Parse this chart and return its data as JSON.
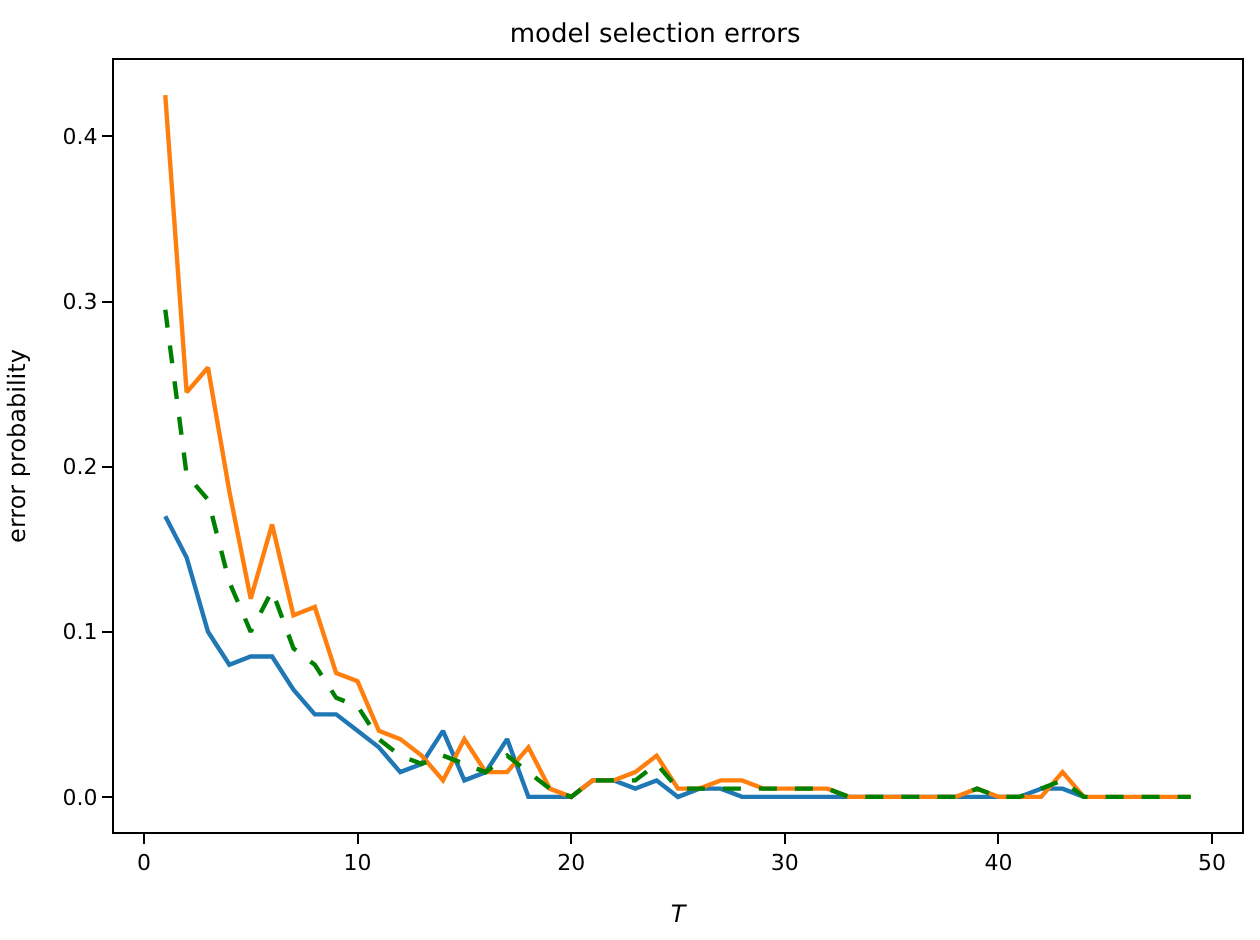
{
  "chart_data": {
    "type": "line",
    "title": "model selection errors",
    "xlabel": "T",
    "ylabel": "error probability",
    "x": [
      1,
      2,
      3,
      4,
      5,
      6,
      7,
      8,
      9,
      10,
      11,
      12,
      13,
      14,
      15,
      16,
      17,
      18,
      19,
      20,
      21,
      22,
      23,
      24,
      25,
      26,
      27,
      28,
      29,
      30,
      31,
      32,
      33,
      34,
      35,
      36,
      37,
      38,
      39,
      40,
      41,
      42,
      43,
      44,
      45,
      46,
      47,
      48,
      49
    ],
    "series": [
      {
        "color": "#1f77b4",
        "line_style": "solid",
        "values": [
          0.17,
          0.145,
          0.1,
          0.08,
          0.085,
          0.085,
          0.065,
          0.05,
          0.05,
          0.04,
          0.03,
          0.015,
          0.02,
          0.04,
          0.01,
          0.015,
          0.035,
          0,
          0,
          0,
          0.01,
          0.01,
          0.005,
          0.01,
          0,
          0.005,
          0.005,
          0,
          0,
          0,
          0,
          0,
          0,
          0,
          0,
          0,
          0,
          0,
          0,
          0,
          0,
          0.005,
          0.005,
          0,
          null,
          null,
          null,
          null,
          null
        ]
      },
      {
        "color": "#ff7f0e",
        "line_style": "solid",
        "values": [
          0.425,
          0.245,
          0.26,
          0.185,
          0.12,
          0.165,
          0.11,
          0.115,
          0.075,
          0.07,
          0.04,
          0.035,
          0.025,
          0.01,
          0.035,
          0.015,
          0.015,
          0.03,
          0.005,
          0,
          0.01,
          0.01,
          0.015,
          0.025,
          0.005,
          0.005,
          0.01,
          0.01,
          0.005,
          0.005,
          0.005,
          0.005,
          0,
          0,
          0,
          0,
          0,
          0,
          0.005,
          0,
          0,
          0,
          0.015,
          0,
          0,
          0,
          0,
          0,
          0
        ]
      },
      {
        "color": "#008000",
        "line_style": "dashed",
        "values": [
          0.295,
          0.195,
          0.18,
          0.13,
          0.1,
          0.125,
          0.09,
          0.08,
          0.06,
          0.055,
          0.035,
          0.025,
          0.02,
          0.025,
          0.02,
          0.015,
          0.025,
          0.015,
          0.005,
          0,
          0.01,
          0.01,
          0.01,
          0.02,
          0.005,
          0.005,
          0.005,
          0.005,
          0.005,
          0.005,
          0.005,
          0.005,
          0,
          0,
          0,
          0,
          0,
          0,
          0.005,
          0,
          0,
          0.005,
          0.01,
          0,
          0,
          0,
          0,
          0,
          0
        ]
      }
    ],
    "xlim": [
      -1.4,
      51.4
    ],
    "xticks": [
      0,
      10,
      20,
      30,
      40,
      50
    ],
    "ylim": [
      -0.02125,
      0.44625
    ],
    "yticks": [
      {
        "value": 0,
        "label": "0.0"
      },
      0.1,
      0.2,
      0.3,
      0.4
    ]
  }
}
